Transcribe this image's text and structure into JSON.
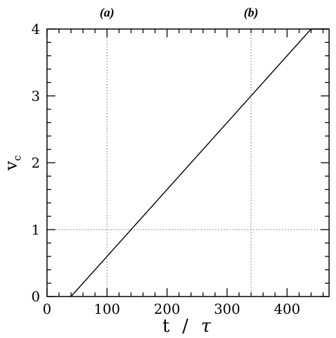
{
  "chart_data": {
    "type": "line",
    "xlabel": {
      "main": "t",
      "sep": "/",
      "unit": "τ"
    },
    "ylabel": {
      "main": "v",
      "sub": "c"
    },
    "xlim": [
      0,
      470
    ],
    "ylim": [
      0,
      4
    ],
    "x_ticks": [
      0,
      100,
      200,
      300,
      400
    ],
    "x_tick_labels": [
      "0",
      "100",
      "200",
      "300",
      "400"
    ],
    "y_ticks": [
      0,
      1,
      2,
      3,
      4
    ],
    "y_tick_labels": [
      "0",
      "1",
      "2",
      "3",
      "4"
    ],
    "x_minor_step": 20,
    "y_minor_step": 0.2,
    "grid": false,
    "reference_lines": [
      {
        "orientation": "vertical",
        "x": 100,
        "style": "dotted"
      },
      {
        "orientation": "vertical",
        "x": 340,
        "style": "dotted"
      },
      {
        "orientation": "horizontal",
        "y": 1,
        "style": "dotted"
      }
    ],
    "annotations": [
      {
        "text": "(a)",
        "x": 100
      },
      {
        "text": "(b)",
        "x": 340
      }
    ],
    "series": [
      {
        "x": [
          40,
          440,
          470
        ],
        "y": [
          0,
          4,
          4
        ]
      }
    ]
  }
}
